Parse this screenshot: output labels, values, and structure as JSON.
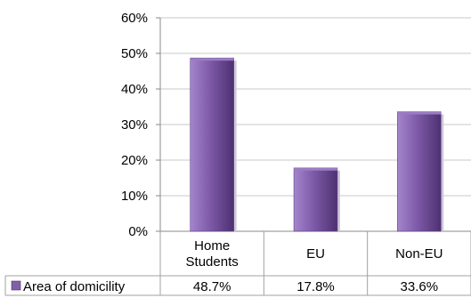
{
  "chart_data": {
    "type": "bar",
    "categories": [
      [
        "Home",
        "Students"
      ],
      [
        "EU"
      ],
      [
        "Non-EU"
      ]
    ],
    "series": [
      {
        "name": "Area of domicility",
        "values": [
          48.7,
          17.8,
          33.6
        ],
        "labels": [
          "48.7%",
          "17.8%",
          "33.6%"
        ],
        "color": "#8060a8"
      }
    ],
    "y_ticks": [
      "0%",
      "10%",
      "20%",
      "30%",
      "40%",
      "50%",
      "60%"
    ],
    "ylim": [
      0,
      60
    ],
    "grid": true,
    "legend": "data-table-left",
    "colors": {
      "bar_light": "#a486cc",
      "bar_main": "#7e5aa8",
      "bar_dark": "#4d3171",
      "bar_top": "#9a7cc2"
    }
  }
}
